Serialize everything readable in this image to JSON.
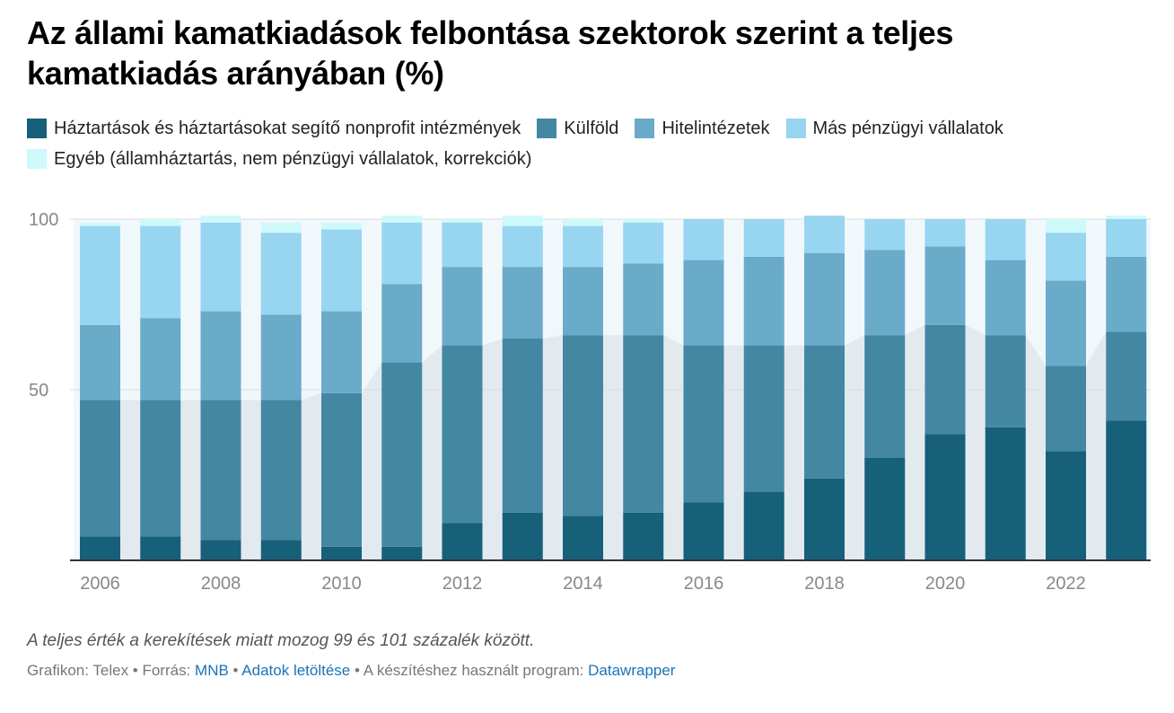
{
  "header": {
    "title": "Az állami kamatkiadások felbontása szektorok szerint a teljes kamatkiadás arányában (%)"
  },
  "colors": {
    "series": [
      "#17607a",
      "#4487a3",
      "#6aabca",
      "#98d5f0",
      "#cef9fb"
    ],
    "band": "#e2eaf0",
    "gap": "#f1f8fc",
    "grid": "#dddddd",
    "axis": "#333333"
  },
  "chart_data": {
    "type": "bar",
    "stacked": true,
    "categories": [
      "2006",
      "2007",
      "2008",
      "2009",
      "2010",
      "2011",
      "2012",
      "2013",
      "2014",
      "2015",
      "2016",
      "2017",
      "2018",
      "2019",
      "2020",
      "2021",
      "2022",
      "2023"
    ],
    "series": [
      {
        "name": "Háztartások és háztartásokat segítő nonprofit intézmények",
        "values": [
          7,
          7,
          6,
          6,
          4,
          4,
          11,
          14,
          13,
          14,
          17,
          20,
          24,
          30,
          37,
          39,
          32,
          41
        ]
      },
      {
        "name": "Külföld",
        "values": [
          40,
          40,
          41,
          41,
          45,
          54,
          52,
          51,
          53,
          52,
          46,
          43,
          39,
          36,
          32,
          27,
          25,
          26
        ]
      },
      {
        "name": "Hitelintézetek",
        "values": [
          22,
          24,
          26,
          25,
          24,
          23,
          23,
          21,
          20,
          21,
          25,
          26,
          27,
          25,
          23,
          22,
          25,
          22
        ]
      },
      {
        "name": "Más pénzügyi vállalatok",
        "values": [
          29,
          27,
          26,
          24,
          24,
          18,
          13,
          12,
          12,
          12,
          12,
          11,
          11,
          9,
          8,
          12,
          14,
          11
        ]
      },
      {
        "name": "Egyéb (államháztartás, nem pénzügyi vállalatok, korrekciók)",
        "values": [
          1,
          2,
          2,
          3,
          2,
          2,
          1,
          3,
          2,
          1,
          0,
          0,
          0,
          0,
          0,
          0,
          4,
          1
        ]
      }
    ],
    "ylim": [
      0,
      100
    ],
    "yticks": [
      "50",
      "100"
    ],
    "xticks": [
      "2006",
      "2008",
      "2010",
      "2012",
      "2014",
      "2016",
      "2018",
      "2020",
      "2022"
    ],
    "grid": true,
    "legend_position": "top"
  },
  "footer": {
    "note": "A teljes érték a kerekítések miatt mozog 99 és 101 százalék között.",
    "credit_prefix": "Grafikon: Telex • Forrás: ",
    "source_link": "MNB",
    "sep": " • ",
    "download_link": "Adatok letöltése",
    "program_prefix": " • A készítéshez használt program: ",
    "program_link": "Datawrapper"
  }
}
